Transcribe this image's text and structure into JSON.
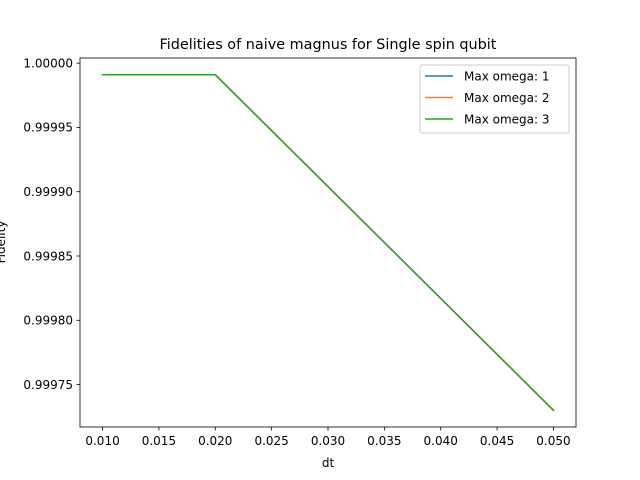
{
  "chart_data": {
    "type": "line",
    "title": "Fidelities of naive magnus for Single spin qubit",
    "xlabel": "dt",
    "ylabel": "Fidelity",
    "x": [
      0.01,
      0.02,
      0.05
    ],
    "series": [
      {
        "name": "Max omega: 1",
        "color": "#1f77b4",
        "values": [
          0.999991,
          0.999991,
          0.99973
        ]
      },
      {
        "name": "Max omega: 2",
        "color": "#ff7f0e",
        "values": [
          0.999991,
          0.999991,
          0.99973
        ]
      },
      {
        "name": "Max omega: 3",
        "color": "#2ca02c",
        "values": [
          0.999991,
          0.999991,
          0.99973
        ]
      }
    ],
    "xlim": [
      0.008,
      0.052
    ],
    "ylim": [
      0.999717,
      1.000004
    ],
    "xticks": [
      "0.010",
      "0.015",
      "0.020",
      "0.025",
      "0.030",
      "0.035",
      "0.040",
      "0.045",
      "0.050"
    ],
    "yticks": [
      "0.99975",
      "0.99980",
      "0.99985",
      "0.99990",
      "0.99995",
      "1.00000"
    ],
    "grid": false,
    "legend_position": "top-right"
  }
}
